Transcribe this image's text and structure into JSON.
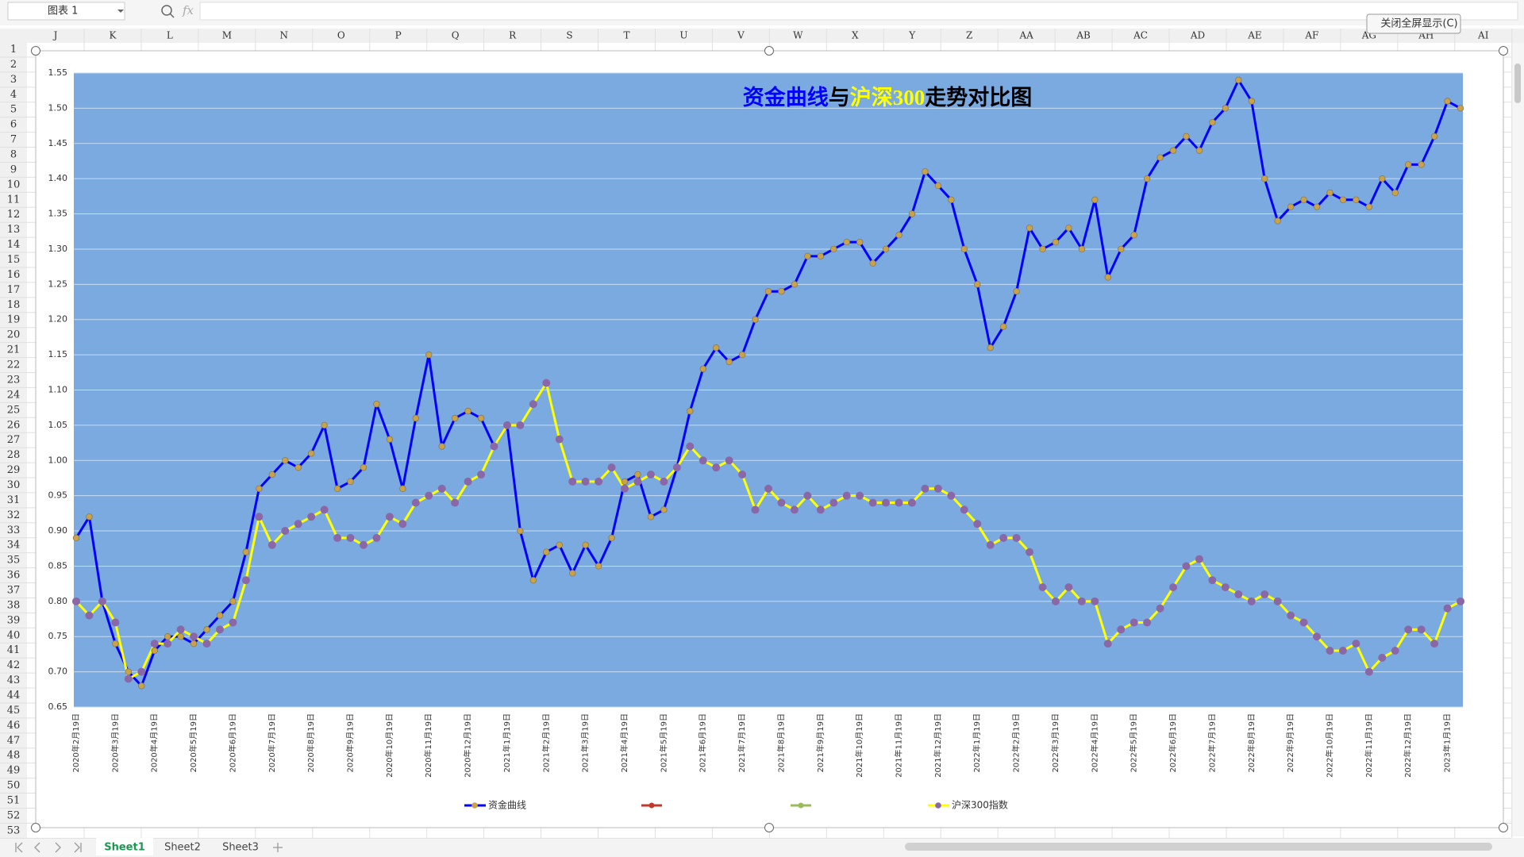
{
  "ui": {
    "name_box": "图表 1",
    "fx_label": "fx",
    "close_button": "关闭全屏显示(C)",
    "columns": [
      "J",
      "K",
      "L",
      "M",
      "N",
      "O",
      "P",
      "Q",
      "R",
      "S",
      "T",
      "U",
      "V",
      "W",
      "X",
      "Y",
      "Z",
      "AA",
      "AB",
      "AC",
      "AD",
      "AE",
      "AF",
      "AG",
      "AH",
      "AI"
    ],
    "rows": [
      1,
      2,
      3,
      4,
      5,
      6,
      7,
      8,
      9,
      10,
      11,
      12,
      13,
      14,
      15,
      16,
      17,
      18,
      19,
      20,
      21,
      22,
      23,
      24,
      25,
      26,
      27,
      28,
      29,
      30,
      31,
      32,
      33,
      34,
      35,
      36,
      37,
      38,
      39,
      40,
      41,
      42,
      43,
      44,
      45,
      46,
      47,
      48,
      49,
      50,
      51,
      52,
      53
    ],
    "sheets": [
      "Sheet1",
      "Sheet2",
      "Sheet3"
    ]
  },
  "chart_data": {
    "type": "line",
    "title_parts": [
      {
        "text": "资金曲线",
        "color": "#0000ff"
      },
      {
        "text": "与",
        "color": "#000000"
      },
      {
        "text": "沪深300",
        "color": "#ffff00"
      },
      {
        "text": "走势对比图",
        "color": "#000000"
      }
    ],
    "categories": [
      "2020年2月19日",
      null,
      null,
      "2020年3月19日",
      null,
      null,
      "2020年4月19日",
      null,
      null,
      "2020年5月19日",
      null,
      null,
      "2020年6月19日",
      null,
      null,
      "2020年7月19日",
      null,
      null,
      "2020年8月19日",
      null,
      null,
      "2020年9月19日",
      null,
      null,
      "2020年10月19日",
      null,
      null,
      "2020年11月19日",
      null,
      null,
      "2020年12月19日",
      null,
      null,
      "2021年1月19日",
      null,
      null,
      "2021年2月19日",
      null,
      null,
      "2021年3月19日",
      null,
      null,
      "2021年4月19日",
      null,
      null,
      "2021年5月19日",
      null,
      null,
      "2021年6月19日",
      null,
      null,
      "2021年7月19日",
      null,
      null,
      "2021年8月19日",
      null,
      null,
      "2021年9月19日",
      null,
      null,
      "2021年10月19日",
      null,
      null,
      "2021年11月19日",
      null,
      null,
      "2021年12月19日",
      null,
      null,
      "2022年1月19日",
      null,
      null,
      "2022年2月19日",
      null,
      null,
      "2022年3月19日",
      null,
      null,
      "2022年4月19日",
      null,
      null,
      "2022年5月19日",
      null,
      null,
      "2022年6月19日",
      null,
      null,
      "2022年7月19日",
      null,
      null,
      "2022年8月19日",
      null,
      null,
      "2022年9月19日",
      null,
      null,
      "2022年10月19日",
      null,
      null,
      "2022年11月19日",
      null,
      null,
      "2022年12月19日",
      null,
      null,
      "2023年1月19日",
      null
    ],
    "series": [
      {
        "name": "资金曲线",
        "color": "#0000ff",
        "marker_color": "#c9a24a",
        "values": [
          0.89,
          0.92,
          0.8,
          0.74,
          0.7,
          0.68,
          0.73,
          0.75,
          0.75,
          0.74,
          0.76,
          0.78,
          0.8,
          0.87,
          0.96,
          0.98,
          1.0,
          0.99,
          1.01,
          1.05,
          0.96,
          0.97,
          0.99,
          1.08,
          1.03,
          0.96,
          1.06,
          1.15,
          1.02,
          1.06,
          1.07,
          1.06,
          1.02,
          1.05,
          0.9,
          0.83,
          0.87,
          0.88,
          0.84,
          0.88,
          0.85,
          0.89,
          0.97,
          0.98,
          0.92,
          0.93,
          0.99,
          1.07,
          1.13,
          1.16,
          1.14,
          1.15,
          1.2,
          1.24,
          1.24,
          1.25,
          1.29,
          1.29,
          1.3,
          1.31,
          1.31,
          1.28,
          1.3,
          1.32,
          1.35,
          1.41,
          1.39,
          1.37,
          1.3,
          1.25,
          1.16,
          1.19,
          1.24,
          1.33,
          1.3,
          1.31,
          1.33,
          1.3,
          1.37,
          1.26,
          1.3,
          1.32,
          1.4,
          1.43,
          1.44,
          1.46,
          1.44,
          1.48,
          1.5,
          1.54,
          1.51,
          1.4,
          1.34,
          1.36,
          1.37,
          1.36,
          1.38,
          1.37,
          1.37,
          1.36,
          1.4,
          1.38,
          1.42,
          1.42,
          1.46,
          1.51,
          1.5
        ]
      },
      {
        "name": "沪深300指数",
        "color": "#ffff00",
        "marker_color": "#8a68a8",
        "values": [
          0.8,
          0.78,
          0.8,
          0.77,
          0.69,
          0.7,
          0.74,
          0.74,
          0.76,
          0.75,
          0.74,
          0.76,
          0.77,
          0.83,
          0.92,
          0.88,
          0.9,
          0.91,
          0.92,
          0.93,
          0.89,
          0.89,
          0.88,
          0.89,
          0.92,
          0.91,
          0.94,
          0.95,
          0.96,
          0.94,
          0.97,
          0.98,
          1.02,
          1.05,
          1.05,
          1.08,
          1.11,
          1.03,
          0.97,
          0.97,
          0.97,
          0.99,
          0.96,
          0.97,
          0.98,
          0.97,
          0.99,
          1.02,
          1.0,
          0.99,
          1.0,
          0.98,
          0.93,
          0.96,
          0.94,
          0.93,
          0.95,
          0.93,
          0.94,
          0.95,
          0.95,
          0.94,
          0.94,
          0.94,
          0.94,
          0.96,
          0.96,
          0.95,
          0.93,
          0.91,
          0.88,
          0.89,
          0.89,
          0.87,
          0.82,
          0.8,
          0.82,
          0.8,
          0.8,
          0.74,
          0.76,
          0.77,
          0.77,
          0.79,
          0.82,
          0.85,
          0.86,
          0.83,
          0.82,
          0.81,
          0.8,
          0.81,
          0.8,
          0.78,
          0.77,
          0.75,
          0.73,
          0.73,
          0.74,
          0.7,
          0.72,
          0.73,
          0.76,
          0.76,
          0.74,
          0.79,
          0.8
        ]
      }
    ],
    "ylim": [
      0.65,
      1.55
    ],
    "yticks": [
      0.65,
      {
        "value": 0.7,
        "label": "0.70"
      },
      0.75,
      {
        "value": 0.8,
        "label": "0.80"
      },
      0.85,
      {
        "value": 0.9,
        "label": "0.90"
      },
      0.95,
      {
        "value": 1.0,
        "label": "1.00"
      },
      1.05,
      {
        "value": 1.1,
        "label": "1.10"
      },
      1.15,
      {
        "value": 1.2,
        "label": "1.20"
      },
      1.25,
      {
        "value": 1.3,
        "label": "1.30"
      },
      1.35,
      {
        "value": 1.4,
        "label": "1.40"
      },
      1.45,
      {
        "value": 1.5,
        "label": "1.50"
      },
      1.55
    ],
    "grid": true,
    "plot_background": "#7aaae0"
  }
}
